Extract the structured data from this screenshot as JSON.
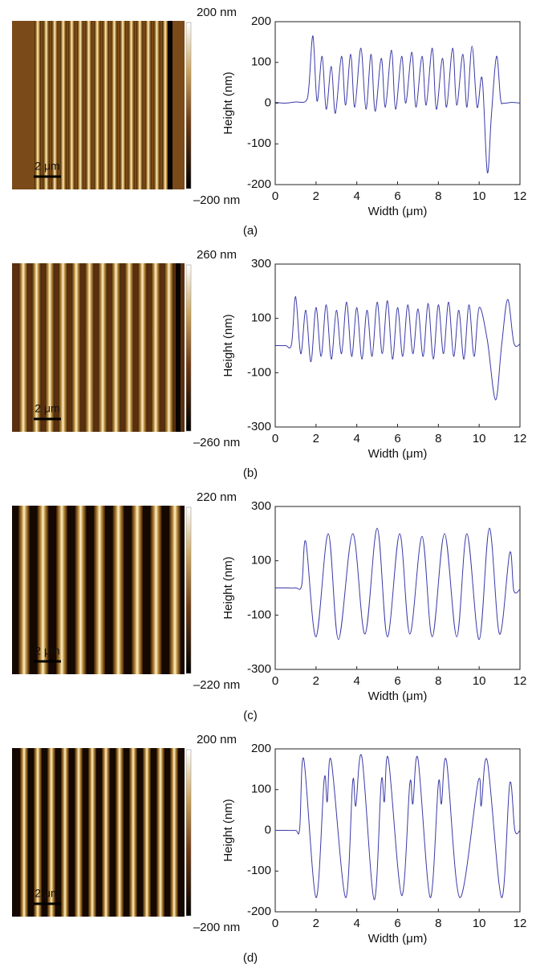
{
  "chart_data": [
    {
      "type": "line",
      "caption": "(a)",
      "xlabel": "Width (μm)",
      "ylabel": "Height (nm)",
      "color_scale_max": "200 nm",
      "color_scale_min": "–200 nm",
      "scale_bar": "2 μm",
      "color": "#3a3aa8",
      "xlim": [
        0,
        12
      ],
      "xticks": [
        0,
        2,
        4,
        6,
        8,
        10,
        12
      ],
      "ylim": [
        -200,
        200
      ],
      "yticks": [
        -200,
        -100,
        0,
        100,
        200
      ],
      "x": [
        0,
        0.5,
        1,
        1.5,
        1.65,
        1.85,
        2.05,
        2.3,
        2.5,
        2.75,
        2.95,
        3.25,
        3.45,
        3.7,
        3.9,
        4.2,
        4.45,
        4.7,
        4.9,
        5.2,
        5.4,
        5.7,
        5.9,
        6.2,
        6.4,
        6.7,
        6.9,
        7.2,
        7.4,
        7.7,
        7.9,
        8.2,
        8.4,
        8.7,
        8.9,
        9.2,
        9.4,
        9.65,
        9.9,
        10.15,
        10.4,
        10.6,
        10.85,
        11.05,
        11.2,
        11.6,
        12
      ],
      "values": [
        2,
        0,
        3,
        5,
        40,
        165,
        5,
        115,
        -15,
        90,
        -25,
        115,
        -5,
        120,
        -10,
        135,
        -15,
        120,
        -20,
        110,
        -10,
        130,
        -15,
        115,
        0,
        125,
        -10,
        115,
        -5,
        135,
        -15,
        110,
        -10,
        135,
        -5,
        120,
        -10,
        140,
        -10,
        60,
        -170,
        -30,
        115,
        10,
        0,
        2,
        0
      ]
    },
    {
      "type": "line",
      "caption": "(b)",
      "xlabel": "Width (μm)",
      "ylabel": "Height (nm)",
      "color_scale_max": "260 nm",
      "color_scale_min": "–260 nm",
      "scale_bar": "2 μm",
      "color": "#3a3aa8",
      "xlim": [
        0,
        12
      ],
      "xticks": [
        0,
        2,
        4,
        6,
        8,
        10,
        12
      ],
      "ylim": [
        -300,
        300
      ],
      "yticks": [
        -300,
        -100,
        100,
        300
      ],
      "x": [
        0,
        0.5,
        0.8,
        1.0,
        1.25,
        1.5,
        1.75,
        2.0,
        2.25,
        2.5,
        2.75,
        3.0,
        3.25,
        3.5,
        3.75,
        4.0,
        4.25,
        4.5,
        4.75,
        5.0,
        5.25,
        5.5,
        5.75,
        6.0,
        6.25,
        6.5,
        6.75,
        7.0,
        7.25,
        7.5,
        7.75,
        8.0,
        8.25,
        8.5,
        8.75,
        9.0,
        9.25,
        9.5,
        9.75,
        10.0,
        10.4,
        10.8,
        11.1,
        11.4,
        11.7,
        12
      ],
      "values": [
        0,
        0,
        5,
        180,
        -30,
        130,
        -60,
        140,
        -40,
        150,
        -50,
        130,
        -30,
        160,
        -40,
        140,
        -50,
        130,
        -40,
        160,
        -30,
        165,
        -50,
        140,
        -40,
        150,
        -30,
        135,
        -40,
        155,
        -50,
        150,
        -30,
        160,
        -40,
        130,
        -50,
        150,
        -40,
        140,
        20,
        -200,
        0,
        170,
        10,
        5
      ]
    },
    {
      "type": "line",
      "caption": "(c)",
      "xlabel": "Width (μm)",
      "ylabel": "Height (nm)",
      "color_scale_max": "220 nm",
      "color_scale_min": "–220 nm",
      "scale_bar": "2 μm",
      "color": "#3a3aa8",
      "xlim": [
        0,
        12
      ],
      "xticks": [
        0,
        2,
        4,
        6,
        8,
        10,
        12
      ],
      "ylim": [
        -300,
        300
      ],
      "yticks": [
        -300,
        -100,
        100,
        300
      ],
      "x": [
        0,
        0.5,
        1.0,
        1.3,
        1.5,
        2.0,
        2.6,
        3.1,
        3.8,
        4.4,
        5.0,
        5.5,
        6.1,
        6.6,
        7.2,
        7.7,
        8.3,
        8.9,
        9.4,
        10.0,
        10.5,
        11.0,
        11.5,
        11.7,
        12
      ],
      "values": [
        0,
        0,
        0,
        10,
        170,
        -180,
        200,
        -190,
        200,
        -170,
        220,
        -180,
        200,
        -170,
        190,
        -180,
        200,
        -180,
        200,
        -190,
        220,
        -170,
        130,
        -10,
        -5
      ]
    },
    {
      "type": "line",
      "caption": "(d)",
      "xlabel": "Width (μm)",
      "ylabel": "Height (nm)",
      "color_scale_max": "200 nm",
      "color_scale_min": "–200 nm",
      "scale_bar": "2 μm",
      "color": "#3a3aa8",
      "xlim": [
        0,
        12
      ],
      "xticks": [
        0,
        2,
        4,
        6,
        8,
        10,
        12
      ],
      "ylim": [
        -200,
        200
      ],
      "yticks": [
        -200,
        -100,
        0,
        100,
        200
      ],
      "x": [
        0,
        0.5,
        1.0,
        1.2,
        1.4,
        2.0,
        2.4,
        2.55,
        2.75,
        3.45,
        3.8,
        3.95,
        4.25,
        4.85,
        5.2,
        5.35,
        5.55,
        6.2,
        6.6,
        6.75,
        7.0,
        7.6,
        8.0,
        8.15,
        8.4,
        9.05,
        9.95,
        10.1,
        10.4,
        11.1,
        11.5,
        11.75,
        12
      ],
      "values": [
        0,
        0,
        0,
        5,
        175,
        -165,
        125,
        70,
        170,
        -165,
        120,
        60,
        180,
        -170,
        120,
        70,
        175,
        -160,
        115,
        65,
        175,
        -165,
        115,
        65,
        170,
        -165,
        120,
        60,
        170,
        -165,
        115,
        0,
        0
      ]
    }
  ]
}
